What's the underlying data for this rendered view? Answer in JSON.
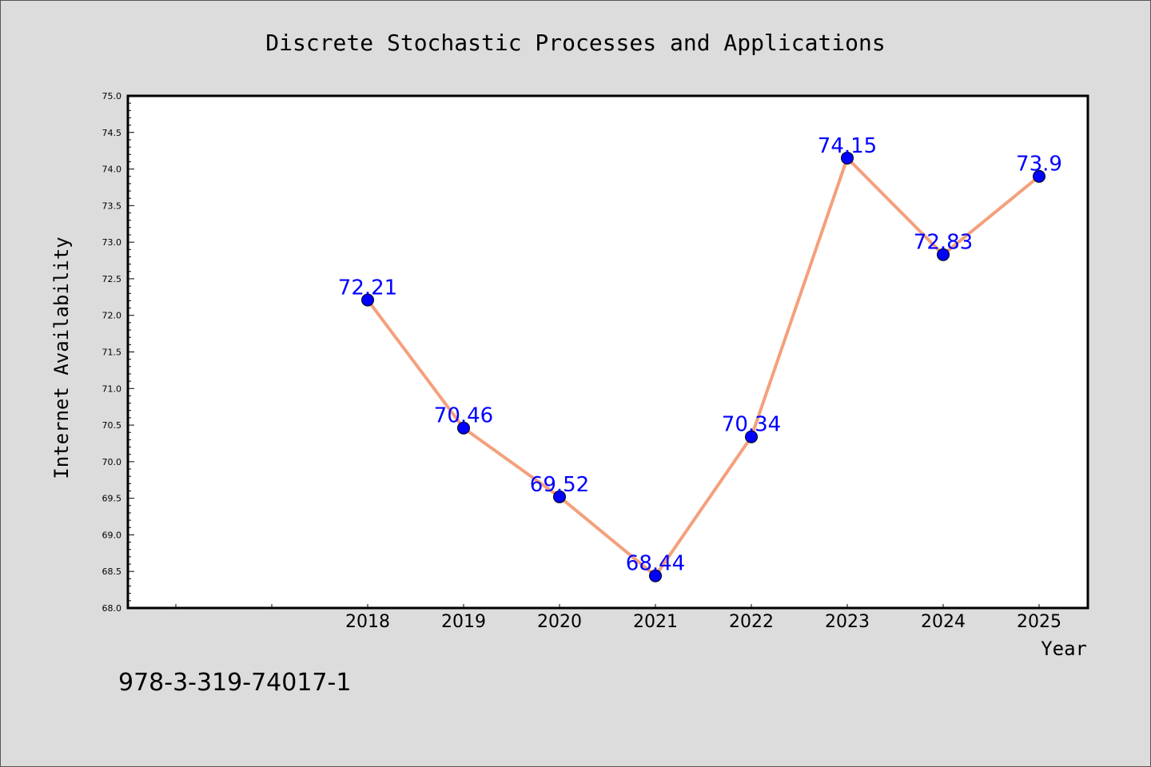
{
  "chart_data": {
    "type": "line",
    "title": "Discrete Stochastic Processes and Applications",
    "xlabel": "Year",
    "ylabel": "Internet Availability",
    "x": [
      "2018",
      "2019",
      "2020",
      "2021",
      "2022",
      "2023",
      "2024",
      "2025"
    ],
    "series": [
      {
        "values": [
          72.21,
          70.46,
          69.52,
          68.44,
          70.34,
          74.15,
          72.83,
          73.9
        ],
        "data_labels": [
          "72.21",
          "70.46",
          "69.52",
          "68.44",
          "70.34",
          "74.15",
          "72.83",
          "73.9"
        ]
      }
    ],
    "x_ticks": [
      "2018",
      "2019",
      "2020",
      "2021",
      "2022",
      "2023",
      "2024",
      "2025"
    ],
    "y_ticks": [
      "68.0",
      "68.5",
      "69.0",
      "69.5",
      "70.0",
      "70.5",
      "71.0",
      "71.5",
      "72.0",
      "72.5",
      "73.0",
      "73.5",
      "74.0",
      "74.5",
      "75.0"
    ],
    "ylim": [
      68.0,
      75.0
    ],
    "grid": false,
    "legend": "none",
    "colors": {
      "line": "#f4a07c",
      "marker": "#0000ff",
      "data_label": "#0000ff",
      "background": "#dcdcdc",
      "plot_area": "#ffffff"
    }
  },
  "footer_text": "978-3-319-74017-1"
}
